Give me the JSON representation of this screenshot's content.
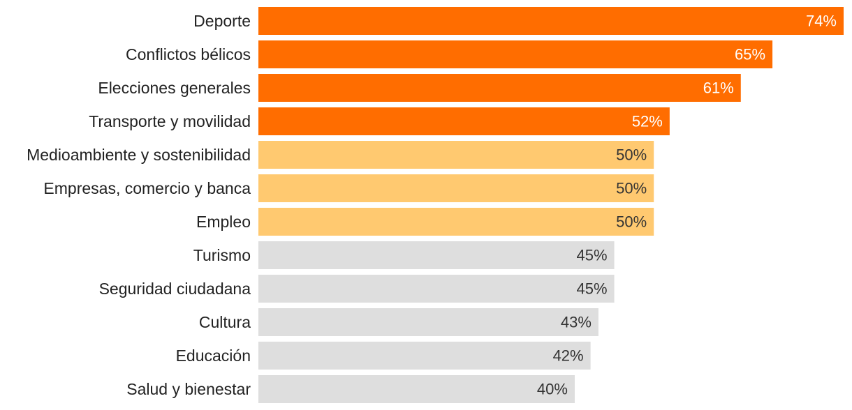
{
  "chart_data": {
    "type": "bar",
    "orientation": "horizontal",
    "title": "",
    "xlabel": "",
    "ylabel": "",
    "xlim": [
      0,
      74
    ],
    "grid": false,
    "legend": "none",
    "categories": [
      "Deporte",
      "Conflictos bélicos",
      "Elecciones generales",
      "Transporte y movilidad",
      "Medioambiente y sostenibilidad",
      "Empresas, comercio y banca",
      "Empleo",
      "Turismo",
      "Seguridad ciudadana",
      "Cultura",
      "Educación",
      "Salud y bienestar"
    ],
    "values": [
      74,
      65,
      61,
      52,
      50,
      50,
      50,
      45,
      45,
      43,
      42,
      40
    ],
    "value_labels": [
      "74%",
      "65%",
      "61%",
      "52%",
      "50%",
      "50%",
      "50%",
      "45%",
      "45%",
      "43%",
      "42%",
      "40%"
    ],
    "colors": [
      "#ff6d00",
      "#ff6d00",
      "#ff6d00",
      "#ff6d00",
      "#ffc970",
      "#ffc970",
      "#ffc970",
      "#dedede",
      "#dedede",
      "#dedede",
      "#dedede",
      "#dedede"
    ],
    "label_colors": [
      "#ffffff",
      "#ffffff",
      "#ffffff",
      "#ffffff",
      "#333333",
      "#333333",
      "#333333",
      "#333333",
      "#333333",
      "#333333",
      "#333333",
      "#333333"
    ]
  }
}
